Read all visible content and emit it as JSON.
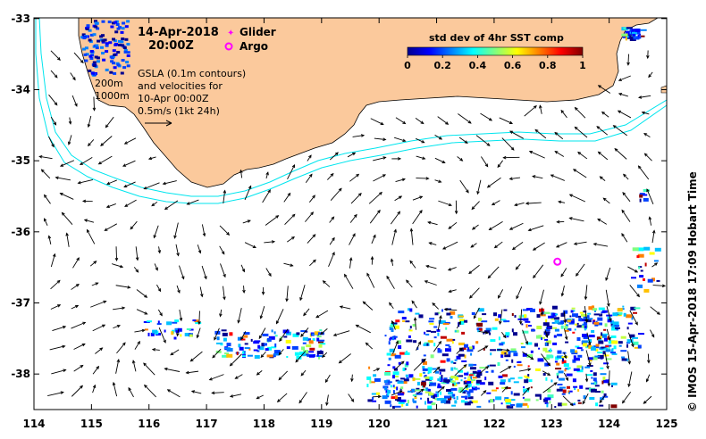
{
  "header": {
    "date_line": "14-Apr-2018",
    "time_line": "20:00Z"
  },
  "legend": {
    "glider_label": "Glider",
    "argo_label": "Argo",
    "glider_color": "#ff00ff",
    "argo_color": "#ff00ff"
  },
  "annotations": {
    "contour_200": "200m",
    "contour_1000": "1000m",
    "gsla_line1": "GSLA (0.1m contours)",
    "gsla_line2": "and velocities for",
    "gsla_line3": "10-Apr 00:00Z",
    "scale_label": "0.5m/s (1kt 24h)"
  },
  "colorbar": {
    "title": "std dev of 4hr SST comp",
    "ticks": [
      "0",
      "0.2",
      "0.4",
      "0.6",
      "0.8",
      "1"
    ]
  },
  "credit": "©  IMOS 15-Apr-2018 17:09 Hobart Time",
  "axes": {
    "x_ticks": [
      "114",
      "115",
      "116",
      "117",
      "118",
      "119",
      "120",
      "121",
      "122",
      "123",
      "124",
      "125"
    ],
    "y_ticks": [
      "-33",
      "-34",
      "-35",
      "-36",
      "-37",
      "-38"
    ]
  },
  "colors": {
    "land": "#fbc99c",
    "isobath": "#00e5ee",
    "argo": "#ff00ff",
    "arrow": "#000000"
  },
  "markers": {
    "argo_float": {
      "lon": 123.1,
      "lat": -36.42
    }
  }
}
